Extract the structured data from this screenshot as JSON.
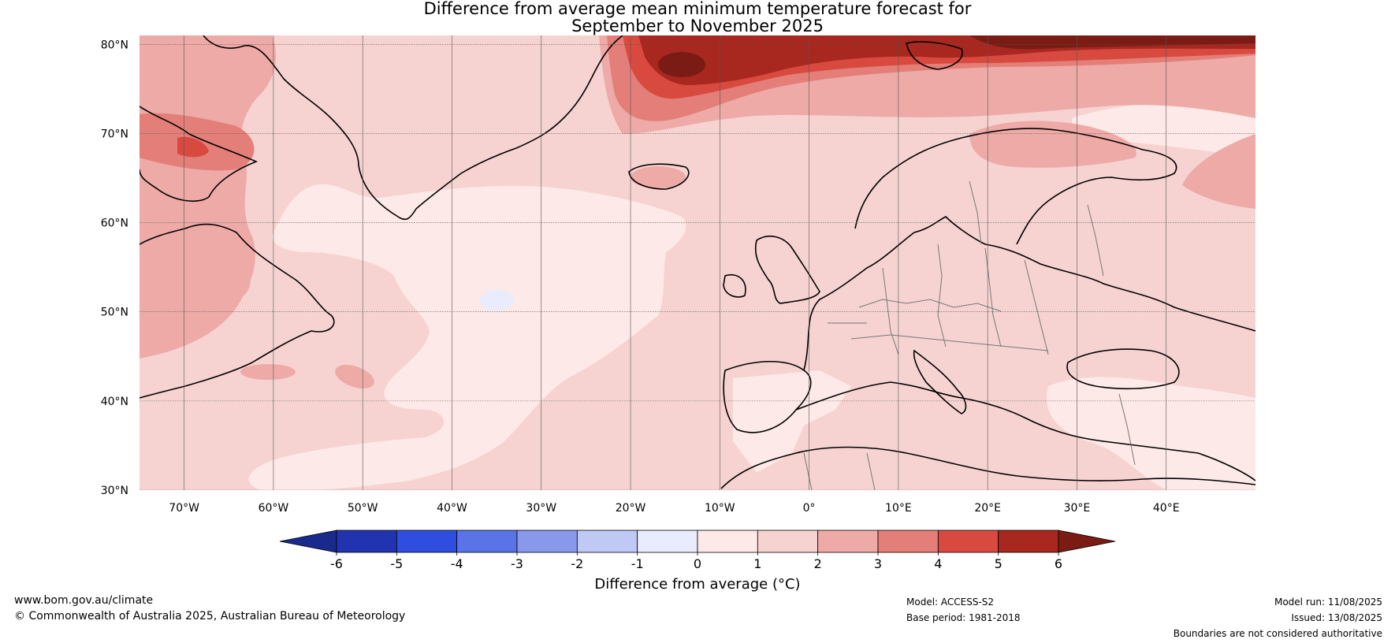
{
  "title_line1": "Difference from average mean minimum temperature forecast for",
  "title_line2": "September to November 2025",
  "map": {
    "lon_range": [
      -75,
      50
    ],
    "lat_range": [
      30,
      81
    ],
    "lat_ticks": [
      "30°N",
      "40°N",
      "50°N",
      "60°N",
      "70°N",
      "80°N"
    ],
    "lon_ticks": [
      "70°W",
      "60°W",
      "50°W",
      "40°W",
      "30°W",
      "20°W",
      "10°W",
      "0°",
      "10°E",
      "20°E",
      "30°E",
      "40°E"
    ],
    "gridlines": true
  },
  "colorbar": {
    "label": "Difference from average (°C)",
    "ticks": [
      "-6",
      "-5",
      "-4",
      "-3",
      "-2",
      "-1",
      "0",
      "1",
      "2",
      "3",
      "4",
      "5",
      "6"
    ],
    "colors": [
      "#1a2a8c",
      "#2233b0",
      "#2f4ee0",
      "#5a74e8",
      "#8899ec",
      "#c0c8f4",
      "#e8ecfc",
      "#fde9e7",
      "#f6d3d1",
      "#eeaaa7",
      "#e37f78",
      "#d84a40",
      "#a8271f",
      "#7a1c14"
    ]
  },
  "footer": {
    "url": "www.bom.gov.au/climate",
    "copyright": "© Commonwealth of Australia 2025, Australian Bureau of Meteorology",
    "model": "Model: ACCESS-S2",
    "base_period": "Base period: 1981-2018",
    "model_run": "Model run: 11/08/2025",
    "issued": "Issued: 13/08/2025",
    "disclaimer": "Boundaries are not considered authoritative"
  }
}
